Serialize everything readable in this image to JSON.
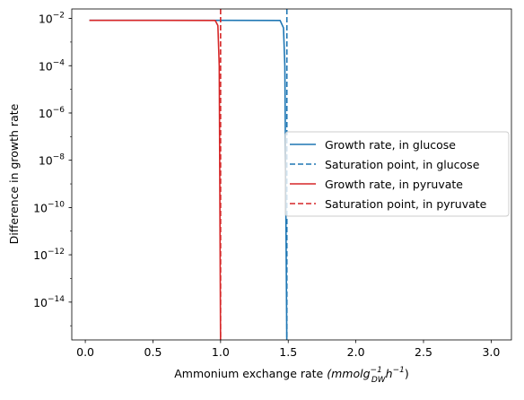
{
  "chart_data": {
    "type": "line",
    "xlabel": "Ammonium exchange rate",
    "xlabel_unit": "(mmolg",
    "xlabel_unit_sup": "−1",
    "xlabel_unit_sub": "DW",
    "xlabel_unit_h": "h",
    "xlabel_unit_h_sup": "−1",
    "xlabel_unit_close": ")",
    "ylabel": "Difference in growth rate",
    "yscale": "log",
    "xlim": [
      -0.1,
      3.15
    ],
    "ylim_log10": [
      -15.6,
      -1.6
    ],
    "grid": false,
    "legend_placement": "center-right",
    "x_ticks": [
      0.0,
      0.5,
      1.0,
      1.5,
      2.0,
      2.5,
      3.0
    ],
    "x_tick_labels": [
      "0.0",
      "0.5",
      "1.0",
      "1.5",
      "2.0",
      "2.5",
      "3.0"
    ],
    "y_ticks": [
      {
        "base": "10",
        "exp": "−2",
        "log10": -2
      },
      {
        "base": "10",
        "exp": "−4",
        "log10": -4
      },
      {
        "base": "10",
        "exp": "−6",
        "log10": -6
      },
      {
        "base": "10",
        "exp": "−8",
        "log10": -8
      },
      {
        "base": "10",
        "exp": "−10",
        "log10": -10
      },
      {
        "base": "10",
        "exp": "−12",
        "log10": -12
      },
      {
        "base": "10",
        "exp": "−14",
        "log10": -14
      }
    ],
    "series": [
      {
        "name": "Growth rate, in glucose",
        "color": "#1f77b4",
        "style": "solid",
        "points": [
          [
            0.03,
            0.0083
          ],
          [
            0.5,
            0.0083
          ],
          [
            1.0,
            0.0083
          ],
          [
            1.44,
            0.0082
          ],
          [
            1.465,
            0.004
          ],
          [
            1.475,
            0.0001
          ],
          [
            1.49,
            1e-16
          ]
        ]
      },
      {
        "name": "Saturation point, in glucose",
        "color": "#1f77b4",
        "style": "dashed",
        "vline_x": 1.49
      },
      {
        "name": "Growth rate, in pyruvate",
        "color": "#d62728",
        "style": "solid",
        "points": [
          [
            0.03,
            0.0083
          ],
          [
            0.5,
            0.0083
          ],
          [
            0.96,
            0.0082
          ],
          [
            0.98,
            0.005
          ],
          [
            0.99,
            0.0001
          ],
          [
            1.0,
            1e-16
          ]
        ]
      },
      {
        "name": "Saturation point, in pyruvate",
        "color": "#d62728",
        "style": "dashed",
        "vline_x": 1.0
      }
    ]
  }
}
